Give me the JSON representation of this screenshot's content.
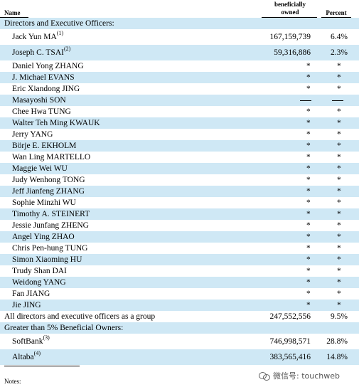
{
  "header": {
    "name": "Name",
    "beneficially": "beneficially",
    "owned": "owned",
    "percent": "Percent"
  },
  "sections": {
    "directors": "Directors and Executive Officers:",
    "greater": "Greater than 5% Beneficial Owners:"
  },
  "rows": [
    {
      "name": "Jack Yun MA",
      "sup": "(1)",
      "shares": "167,159,739",
      "percent": "6.4%"
    },
    {
      "name": "Joseph C. TSAI",
      "sup": "(2)",
      "shares": "59,316,886",
      "percent": "2.3%"
    },
    {
      "name": "Daniel Yong ZHANG",
      "shares": "*",
      "percent": "*"
    },
    {
      "name": "J. Michael EVANS",
      "shares": "*",
      "percent": "*"
    },
    {
      "name": "Eric Xiandong JING",
      "shares": "*",
      "percent": "*"
    },
    {
      "name": "Masayoshi SON",
      "shares": "—",
      "percent": "—"
    },
    {
      "name": "Chee Hwa TUNG",
      "shares": "*",
      "percent": "*"
    },
    {
      "name": "Walter Teh Ming KWAUK",
      "shares": "*",
      "percent": "*"
    },
    {
      "name": "Jerry YANG",
      "shares": "*",
      "percent": "*"
    },
    {
      "name": "Börje E. EKHOLM",
      "shares": "*",
      "percent": "*"
    },
    {
      "name": "Wan Ling MARTELLO",
      "shares": "*",
      "percent": "*"
    },
    {
      "name": "Maggie Wei WU",
      "shares": "*",
      "percent": "*"
    },
    {
      "name": "Judy Wenhong TONG",
      "shares": "*",
      "percent": "*"
    },
    {
      "name": "Jeff Jianfeng ZHANG",
      "shares": "*",
      "percent": "*"
    },
    {
      "name": "Sophie Minzhi WU",
      "shares": "*",
      "percent": "*"
    },
    {
      "name": "Timothy A. STEINERT",
      "shares": "*",
      "percent": "*"
    },
    {
      "name": "Jessie Junfang ZHENG",
      "shares": "*",
      "percent": "*"
    },
    {
      "name": "Angel Ying ZHAO",
      "shares": "*",
      "percent": "*"
    },
    {
      "name": "Chris Pen-hung TUNG",
      "shares": "*",
      "percent": "*"
    },
    {
      "name": "Simon Xiaoming HU",
      "shares": "*",
      "percent": "*"
    },
    {
      "name": "Trudy Shan DAI",
      "shares": "*",
      "percent": "*"
    },
    {
      "name": "Weidong YANG",
      "shares": "*",
      "percent": "*"
    },
    {
      "name": "Fan JIANG",
      "shares": "*",
      "percent": "*"
    },
    {
      "name": "Jie JING",
      "shares": "*",
      "percent": "*"
    }
  ],
  "group": {
    "name": "All directors and executive officers as a group",
    "shares": "247,552,556",
    "percent": "9.5%"
  },
  "owners": [
    {
      "name": "SoftBank",
      "sup": "(3)",
      "shares": "746,998,571",
      "percent": "28.8%"
    },
    {
      "name": "Altaba",
      "sup": "(4)",
      "shares": "383,565,416",
      "percent": "14.8%"
    }
  ],
  "notes": "Notes:",
  "watermark": "微信号: touchweb"
}
